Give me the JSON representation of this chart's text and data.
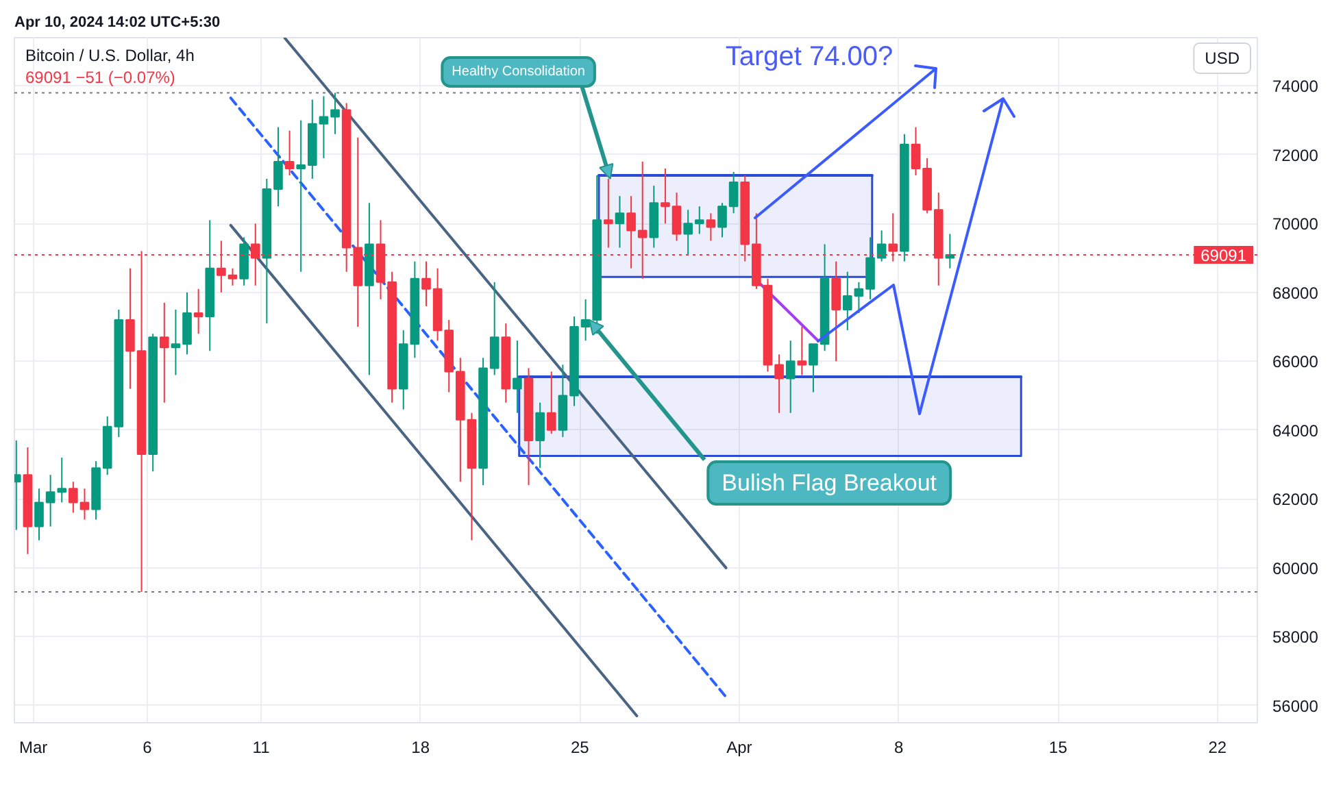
{
  "chart_data": {
    "type": "candlestick",
    "title": "Bitcoin / U.S. Dollar, 4h",
    "subtitle": "69091 −51 (−0.07%)",
    "ylabel": "USD",
    "x": [
      "2024-02-29T06:00",
      "2024-02-29T18:00",
      "2024-03-01T06:00",
      "2024-03-01T18:00",
      "2024-03-02T06:00",
      "2024-03-02T18:00",
      "2024-03-03T06:00",
      "2024-03-03T18:00",
      "2024-03-04T06:00",
      "2024-03-04T18:00",
      "2024-03-05T06:00",
      "2024-03-05T18:00",
      "2024-03-06T06:00",
      "2024-03-06T18:00",
      "2024-03-07T06:00",
      "2024-03-07T18:00",
      "2024-03-08T06:00",
      "2024-03-08T18:00",
      "2024-03-09T06:00",
      "2024-03-09T18:00",
      "2024-03-10T06:00",
      "2024-03-10T18:00",
      "2024-03-11T06:00",
      "2024-03-11T18:00",
      "2024-03-12T06:00",
      "2024-03-12T18:00",
      "2024-03-13T06:00",
      "2024-03-13T18:00",
      "2024-03-14T06:00",
      "2024-03-14T18:00",
      "2024-03-15T06:00",
      "2024-03-15T18:00",
      "2024-03-16T06:00",
      "2024-03-16T18:00",
      "2024-03-17T06:00",
      "2024-03-17T18:00",
      "2024-03-18T06:00",
      "2024-03-18T18:00",
      "2024-03-19T06:00",
      "2024-03-19T18:00",
      "2024-03-20T06:00",
      "2024-03-20T18:00",
      "2024-03-21T06:00",
      "2024-03-21T18:00",
      "2024-03-22T06:00",
      "2024-03-22T18:00",
      "2024-03-23T06:00",
      "2024-03-23T18:00",
      "2024-03-24T06:00",
      "2024-03-24T18:00",
      "2024-03-25T06:00",
      "2024-03-25T18:00",
      "2024-03-26T06:00",
      "2024-03-26T18:00",
      "2024-03-27T06:00",
      "2024-03-27T18:00",
      "2024-03-28T06:00",
      "2024-03-28T18:00",
      "2024-03-29T06:00",
      "2024-03-29T18:00",
      "2024-03-30T06:00",
      "2024-03-30T18:00",
      "2024-03-31T06:00",
      "2024-03-31T18:00",
      "2024-04-01T06:00",
      "2024-04-01T18:00",
      "2024-04-02T06:00",
      "2024-04-02T18:00",
      "2024-04-03T06:00",
      "2024-04-03T18:00",
      "2024-04-04T06:00",
      "2024-04-04T18:00",
      "2024-04-05T06:00",
      "2024-04-05T18:00",
      "2024-04-06T06:00",
      "2024-04-06T18:00",
      "2024-04-07T06:00",
      "2024-04-07T18:00",
      "2024-04-08T06:00",
      "2024-04-08T18:00",
      "2024-04-09T06:00",
      "2024-04-09T18:00",
      "2024-04-10T06:00"
    ],
    "ohlc": [
      [
        62500,
        63700,
        61100,
        62700
      ],
      [
        62700,
        63500,
        60400,
        61200
      ],
      [
        61200,
        62300,
        60800,
        61900
      ],
      [
        61900,
        62700,
        61200,
        62200
      ],
      [
        62200,
        63200,
        61900,
        62300
      ],
      [
        62300,
        62500,
        61600,
        61900
      ],
      [
        61900,
        62300,
        61400,
        61700
      ],
      [
        61700,
        63100,
        61400,
        62900
      ],
      [
        62900,
        64400,
        62700,
        64100
      ],
      [
        64100,
        67500,
        63800,
        67200
      ],
      [
        67200,
        68700,
        65200,
        66300
      ],
      [
        66300,
        69200,
        59300,
        63300
      ],
      [
        63300,
        66800,
        62800,
        66700
      ],
      [
        66700,
        67700,
        64800,
        66400
      ],
      [
        66400,
        67500,
        65600,
        66500
      ],
      [
        66500,
        68000,
        66200,
        67400
      ],
      [
        67400,
        68100,
        66800,
        67300
      ],
      [
        67300,
        70100,
        66300,
        68700
      ],
      [
        68700,
        69500,
        68000,
        68500
      ],
      [
        68500,
        68700,
        68200,
        68400
      ],
      [
        68400,
        69600,
        68200,
        69400
      ],
      [
        69400,
        70000,
        68200,
        69000
      ],
      [
        69000,
        71300,
        67100,
        71000
      ],
      [
        71000,
        72800,
        70500,
        71800
      ],
      [
        71800,
        72700,
        71400,
        71600
      ],
      [
        71600,
        73000,
        68600,
        71700
      ],
      [
        71700,
        73600,
        71300,
        72900
      ],
      [
        72900,
        73700,
        71900,
        73100
      ],
      [
        73100,
        73800,
        72600,
        73300
      ],
      [
        73300,
        73500,
        68600,
        69300
      ],
      [
        69300,
        72500,
        67000,
        68200
      ],
      [
        68200,
        70600,
        65600,
        69400
      ],
      [
        69400,
        70100,
        67800,
        68300
      ],
      [
        68300,
        68600,
        64800,
        65200
      ],
      [
        65200,
        66900,
        64600,
        66500
      ],
      [
        66500,
        68900,
        66100,
        68400
      ],
      [
        68400,
        68900,
        67600,
        68100
      ],
      [
        68100,
        68700,
        66600,
        66900
      ],
      [
        66900,
        67200,
        65100,
        65700
      ],
      [
        65700,
        66100,
        62500,
        64300
      ],
      [
        64300,
        64500,
        60800,
        62900
      ],
      [
        62900,
        66100,
        62400,
        65800
      ],
      [
        65800,
        68300,
        65600,
        66700
      ],
      [
        66700,
        67100,
        64800,
        65200
      ],
      [
        65200,
        66600,
        64500,
        65500
      ],
      [
        65500,
        65800,
        62400,
        63700
      ],
      [
        63700,
        64800,
        62900,
        64500
      ],
      [
        64500,
        65700,
        63900,
        64000
      ],
      [
        64000,
        65900,
        63800,
        65000
      ],
      [
        65000,
        67300,
        64700,
        67000
      ],
      [
        67000,
        67800,
        66600,
        67200
      ],
      [
        67200,
        71400,
        66800,
        70100
      ],
      [
        70100,
        71300,
        69300,
        70000
      ],
      [
        70000,
        70800,
        69300,
        70300
      ],
      [
        70300,
        70800,
        68700,
        69800
      ],
      [
        69800,
        71800,
        68400,
        69600
      ],
      [
        69600,
        71100,
        69300,
        70600
      ],
      [
        70600,
        71600,
        70000,
        70500
      ],
      [
        70500,
        70900,
        69500,
        69700
      ],
      [
        69700,
        70400,
        69100,
        70000
      ],
      [
        70000,
        70500,
        69700,
        70100
      ],
      [
        70100,
        70300,
        69500,
        69900
      ],
      [
        69900,
        70600,
        69600,
        70500
      ],
      [
        70500,
        71500,
        70300,
        71200
      ],
      [
        71200,
        71400,
        68900,
        69400
      ],
      [
        69400,
        70300,
        68100,
        68200
      ],
      [
        68200,
        68400,
        65700,
        65900
      ],
      [
        65900,
        66200,
        64500,
        65500
      ],
      [
        65500,
        66600,
        64500,
        66000
      ],
      [
        66000,
        67000,
        65600,
        65900
      ],
      [
        65900,
        66500,
        65100,
        66500
      ],
      [
        66500,
        69400,
        66300,
        68400
      ],
      [
        68400,
        68900,
        66000,
        67500
      ],
      [
        67500,
        68600,
        66900,
        67900
      ],
      [
        67900,
        68300,
        67400,
        68100
      ],
      [
        68100,
        69600,
        67800,
        69000
      ],
      [
        69000,
        69800,
        68900,
        69400
      ],
      [
        69400,
        70300,
        68900,
        69200
      ],
      [
        69200,
        72600,
        68900,
        72300
      ],
      [
        72300,
        72800,
        71400,
        71600
      ],
      [
        71600,
        71900,
        70300,
        70400
      ],
      [
        70400,
        70900,
        68200,
        69000
      ],
      [
        69000,
        69700,
        68700,
        69091
      ]
    ],
    "colors": [
      "#089981",
      "#f23645",
      "#089981",
      "#089981",
      "#089981",
      "#f23645",
      "#f23645",
      "#089981",
      "#089981",
      "#089981",
      "#f23645",
      "#f23645",
      "#089981",
      "#f23645",
      "#089981",
      "#089981",
      "#f23645",
      "#089981",
      "#f23645",
      "#f23645",
      "#089981",
      "#f23645",
      "#089981",
      "#089981",
      "#f23645",
      "#089981",
      "#089981",
      "#089981",
      "#089981",
      "#f23645",
      "#f23645",
      "#089981",
      "#f23645",
      "#f23645",
      "#089981",
      "#089981",
      "#f23645",
      "#f23645",
      "#f23645",
      "#f23645",
      "#f23645",
      "#089981",
      "#089981",
      "#f23645",
      "#089981",
      "#f23645",
      "#089981",
      "#f23645",
      "#089981",
      "#089981",
      "#089981",
      "#089981",
      "#f23645",
      "#089981",
      "#f23645",
      "#f23645",
      "#089981",
      "#f23645",
      "#f23645",
      "#089981",
      "#089981",
      "#f23645",
      "#089981",
      "#089981",
      "#f23645",
      "#f23645",
      "#f23645",
      "#f23645",
      "#089981",
      "#f23645",
      "#089981",
      "#089981",
      "#f23645",
      "#089981",
      "#089981",
      "#089981",
      "#089981",
      "#f23645",
      "#089981",
      "#f23645",
      "#f23645",
      "#f23645",
      "#089981"
    ],
    "series": [
      {
        "type": "line",
        "x": [
          "2024-03-22T08:00",
          "2024-04-13T09:00"
        ],
        "values": [
          65550,
          65550
        ],
        "lower": [
          63250,
          63250
        ],
        "upper": [
          65550,
          65550
        ],
        "color": "#2a4bd7"
      },
      {
        "type": "line",
        "x": [
          "2024-03-25T20:00",
          "2024-04-06T20:00"
        ],
        "values": [
          71400,
          71400
        ],
        "lower": [
          68450,
          68450
        ],
        "upper": [
          71400,
          71400
        ],
        "color": "#2a4bd7"
      },
      {
        "type": "line",
        "x": [
          "2024-03-12T01:00",
          "2024-03-31T10:00"
        ],
        "values": [
          75390,
          60000
        ],
        "color": "#4a6583"
      },
      {
        "type": "line",
        "x": [
          "2024-03-09T16:00",
          "2024-03-31T10:00"
        ],
        "values": [
          73650,
          56250
        ],
        "color": "#2962ff",
        "line_style": "dashed"
      },
      {
        "type": "line",
        "x": [
          "2024-03-09T16:00",
          "2024-03-27T12:00"
        ],
        "values": [
          69950,
          55700
        ],
        "color": "#4a6583"
      },
      {
        "type": "line",
        "x": [
          "2024-04-01T22:00",
          "2024-04-04T11:00"
        ],
        "values": [
          68250,
          66600
        ],
        "color": "#a03ef0"
      }
    ],
    "xlim": [
      "2024-02-29T04:00",
      "2024-04-23T18:00"
    ],
    "xticks": [
      {
        "value": "2024-03-01",
        "label": "Mar"
      },
      {
        "value": "2024-03-06",
        "label": "6"
      },
      {
        "value": "2024-03-11",
        "label": "11"
      },
      {
        "value": "2024-03-18",
        "label": "18"
      },
      {
        "value": "2024-03-25",
        "label": "25"
      },
      {
        "value": "2024-04-01",
        "label": "Apr"
      },
      {
        "value": "2024-04-08",
        "label": "8"
      },
      {
        "value": "2024-04-15",
        "label": "15"
      },
      {
        "value": "2024-04-22",
        "label": "22"
      }
    ],
    "ylim": [
      55500,
      75400
    ],
    "yticks": [
      56000,
      58000,
      60000,
      62000,
      64000,
      66000,
      68000,
      70000,
      72000,
      74000
    ],
    "grid": true,
    "ref_lines": [
      {
        "axis": "y",
        "value": 69091,
        "label": "69091",
        "color": "#f23645",
        "line_style": "dotted"
      },
      {
        "axis": "y",
        "value": 73800,
        "color": "#787b86",
        "line_style": "dotted"
      },
      {
        "axis": "y",
        "value": 59300,
        "color": "#787b86",
        "line_style": "dotted"
      }
    ],
    "annotations": [
      "Apr 10, 2024 14:02 UTC+5:30",
      {
        "text": "Healthy Consolidation",
        "x": "2024-03-26T08:00",
        "y": 71300
      },
      {
        "text": "Bulish Flag Breakout",
        "x": "2024-03-25T10:00",
        "y": 67200
      },
      "Target 74.00?"
    ]
  }
}
